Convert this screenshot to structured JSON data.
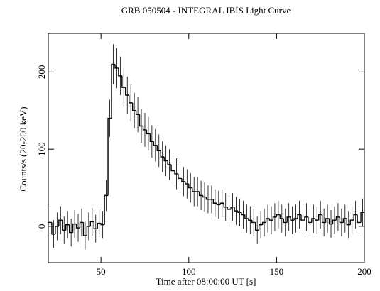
{
  "chart_data": {
    "type": "line",
    "title": "GRB 050504 - INTEGRAL IBIS Light Curve",
    "x_label": "Time after 08:00:00 UT [s]",
    "y_label": "Counts/s (20-200 keV)",
    "xlim": [
      20,
      200
    ],
    "ylim": [
      -47,
      250
    ],
    "xticks": [
      50,
      100,
      150,
      200
    ],
    "yticks": [
      0,
      100,
      200
    ],
    "color": "#000000",
    "x": [
      21,
      23,
      25,
      27,
      29,
      31,
      33,
      35,
      37,
      39,
      41,
      43,
      45,
      47,
      49,
      51,
      53,
      55,
      57,
      59,
      61,
      63,
      65,
      67,
      69,
      71,
      73,
      75,
      77,
      79,
      81,
      83,
      85,
      87,
      89,
      91,
      93,
      95,
      97,
      99,
      101,
      103,
      105,
      107,
      109,
      111,
      113,
      115,
      117,
      119,
      121,
      123,
      125,
      127,
      129,
      131,
      133,
      135,
      137,
      139,
      141,
      143,
      145,
      147,
      149,
      151,
      153,
      155,
      157,
      159,
      161,
      163,
      165,
      167,
      169,
      171,
      173,
      175,
      177,
      179,
      181,
      183,
      185,
      187,
      189,
      191,
      193,
      195,
      197,
      199
    ],
    "values": [
      5,
      -10,
      0,
      8,
      -5,
      2,
      -8,
      3,
      -2,
      5,
      -12,
      0,
      6,
      -3,
      4,
      2,
      40,
      140,
      210,
      205,
      195,
      180,
      170,
      160,
      150,
      145,
      130,
      125,
      120,
      110,
      105,
      98,
      90,
      85,
      80,
      72,
      68,
      62,
      58,
      55,
      50,
      45,
      45,
      40,
      38,
      35,
      35,
      30,
      28,
      30,
      25,
      22,
      25,
      20,
      18,
      15,
      10,
      8,
      5,
      -5,
      2,
      5,
      10,
      8,
      12,
      15,
      10,
      5,
      12,
      8,
      10,
      15,
      8,
      12,
      5,
      10,
      8,
      15,
      5,
      10,
      3,
      8,
      12,
      5,
      10,
      2,
      8,
      15,
      5,
      18
    ],
    "errors": [
      18,
      18,
      18,
      18,
      18,
      18,
      18,
      18,
      18,
      18,
      18,
      18,
      18,
      18,
      18,
      18,
      20,
      24,
      26,
      26,
      25,
      25,
      24,
      24,
      23,
      23,
      22,
      22,
      22,
      21,
      21,
      21,
      20,
      20,
      20,
      20,
      20,
      19,
      19,
      19,
      19,
      19,
      19,
      19,
      19,
      18,
      18,
      18,
      18,
      18,
      18,
      18,
      18,
      18,
      18,
      18,
      18,
      18,
      18,
      18,
      18,
      18,
      18,
      18,
      18,
      18,
      18,
      18,
      18,
      18,
      18,
      18,
      18,
      18,
      18,
      18,
      18,
      18,
      18,
      18,
      18,
      18,
      18,
      18,
      18,
      18,
      18,
      18,
      18,
      18
    ]
  }
}
